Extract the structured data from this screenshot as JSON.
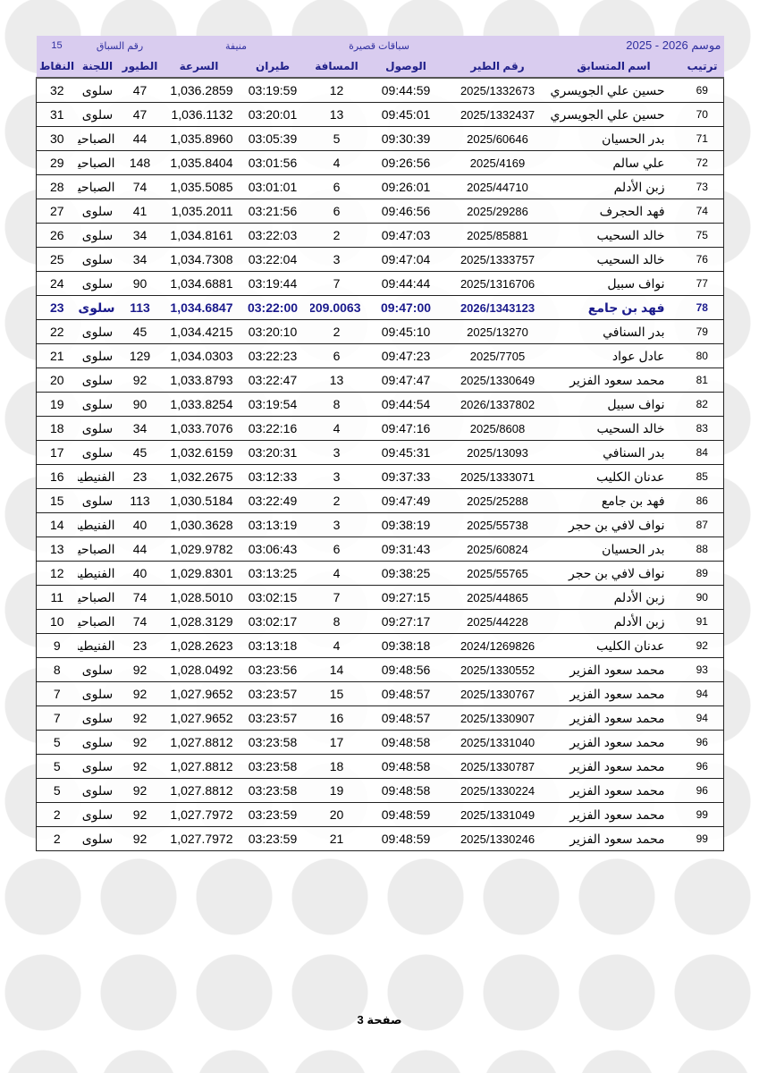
{
  "header": {
    "season": "موسم 2026 - 2025",
    "race_type": "سباقات قصيرة",
    "location": "منيفة",
    "race_number_label": "رقم السباق",
    "race_number": "15"
  },
  "table": {
    "columns": [
      "ترتيب",
      "اسم المتسابق",
      "رقم الطير",
      "الوصول",
      "المسافة",
      "طيران",
      "السرعة",
      "الطيور",
      "اللجنة",
      "النقاط"
    ],
    "rows": [
      [
        "69",
        "حسين علي الجويسري",
        "2025/1332673",
        "09:44:59",
        "12",
        "03:19:59",
        "1,036.2859",
        "47",
        "سلوى",
        "32"
      ],
      [
        "70",
        "حسين علي الجويسري",
        "2025/1332437",
        "09:45:01",
        "13",
        "03:20:01",
        "1,036.1132",
        "47",
        "سلوى",
        "31"
      ],
      [
        "71",
        "بدر الحسيان",
        "2025/60646",
        "09:30:39",
        "5",
        "03:05:39",
        "1,035.8960",
        "44",
        "الصباحية",
        "30"
      ],
      [
        "72",
        "علي سالم",
        "2025/4169",
        "09:26:56",
        "4",
        "03:01:56",
        "1,035.8404",
        "148",
        "الصباحية",
        "29"
      ],
      [
        "73",
        "زبن الأدلم",
        "2025/44710",
        "09:26:01",
        "6",
        "03:01:01",
        "1,035.5085",
        "74",
        "الصباحية",
        "28"
      ],
      [
        "74",
        "فهد الحجرف",
        "2025/29286",
        "09:46:56",
        "6",
        "03:21:56",
        "1,035.2011",
        "41",
        "سلوى",
        "27"
      ],
      [
        "75",
        "خالد السحيب",
        "2025/85881",
        "09:47:03",
        "2",
        "03:22:03",
        "1,034.8161",
        "34",
        "سلوى",
        "26"
      ],
      [
        "76",
        "خالد السحيب",
        "2025/1333757",
        "09:47:04",
        "3",
        "03:22:04",
        "1,034.7308",
        "34",
        "سلوى",
        "25"
      ],
      [
        "77",
        "نواف سبيل",
        "2025/1316706",
        "09:44:44",
        "7",
        "03:19:44",
        "1,034.6881",
        "90",
        "سلوى",
        "24"
      ],
      [
        "78",
        "فهد بن جامع",
        "2026/1343123",
        "09:47:00",
        "209.0063",
        "03:22:00",
        "1,034.6847",
        "113",
        "سلوى",
        "23"
      ],
      [
        "79",
        "بدر السنافي",
        "2025/13270",
        "09:45:10",
        "2",
        "03:20:10",
        "1,034.4215",
        "45",
        "سلوى",
        "22"
      ],
      [
        "80",
        "عادل عواد",
        "2025/7705",
        "09:47:23",
        "6",
        "03:22:23",
        "1,034.0303",
        "129",
        "سلوى",
        "21"
      ],
      [
        "81",
        "محمد سعود الفزير",
        "2025/1330649",
        "09:47:47",
        "13",
        "03:22:47",
        "1,033.8793",
        "92",
        "سلوى",
        "20"
      ],
      [
        "82",
        "نواف سبيل",
        "2026/1337802",
        "09:44:54",
        "8",
        "03:19:54",
        "1,033.8254",
        "90",
        "سلوى",
        "19"
      ],
      [
        "83",
        "خالد السحيب",
        "2025/8608",
        "09:47:16",
        "4",
        "03:22:16",
        "1,033.7076",
        "34",
        "سلوى",
        "18"
      ],
      [
        "84",
        "بدر السنافي",
        "2025/13093",
        "09:45:31",
        "3",
        "03:20:31",
        "1,032.6159",
        "45",
        "سلوى",
        "17"
      ],
      [
        "85",
        "عدنان الكليب",
        "2025/1333071",
        "09:37:33",
        "3",
        "03:12:33",
        "1,032.2675",
        "23",
        "الفنيطيس",
        "16"
      ],
      [
        "86",
        "فهد بن جامع",
        "2025/25288",
        "09:47:49",
        "2",
        "03:22:49",
        "1,030.5184",
        "113",
        "سلوى",
        "15"
      ],
      [
        "87",
        "نواف لافي بن حجر",
        "2025/55738",
        "09:38:19",
        "3",
        "03:13:19",
        "1,030.3628",
        "40",
        "الفنيطيس",
        "14"
      ],
      [
        "88",
        "بدر الحسيان",
        "2025/60824",
        "09:31:43",
        "6",
        "03:06:43",
        "1,029.9782",
        "44",
        "الصباحية",
        "13"
      ],
      [
        "89",
        "نواف لافي بن حجر",
        "2025/55765",
        "09:38:25",
        "4",
        "03:13:25",
        "1,029.8301",
        "40",
        "الفنيطيس",
        "12"
      ],
      [
        "90",
        "زبن الأدلم",
        "2025/44865",
        "09:27:15",
        "7",
        "03:02:15",
        "1,028.5010",
        "74",
        "الصباحية",
        "11"
      ],
      [
        "91",
        "زبن الأدلم",
        "2025/44228",
        "09:27:17",
        "8",
        "03:02:17",
        "1,028.3129",
        "74",
        "الصباحية",
        "10"
      ],
      [
        "92",
        "عدنان الكليب",
        "2024/1269826",
        "09:38:18",
        "4",
        "03:13:18",
        "1,028.2623",
        "23",
        "الفنيطيس",
        "9"
      ],
      [
        "93",
        "محمد سعود الفزير",
        "2025/1330552",
        "09:48:56",
        "14",
        "03:23:56",
        "1,028.0492",
        "92",
        "سلوى",
        "8"
      ],
      [
        "94",
        "محمد سعود الفزير",
        "2025/1330767",
        "09:48:57",
        "15",
        "03:23:57",
        "1,027.9652",
        "92",
        "سلوى",
        "7"
      ],
      [
        "94",
        "محمد سعود الفزير",
        "2025/1330907",
        "09:48:57",
        "16",
        "03:23:57",
        "1,027.9652",
        "92",
        "سلوى",
        "7"
      ],
      [
        "96",
        "محمد سعود الفزير",
        "2025/1331040",
        "09:48:58",
        "17",
        "03:23:58",
        "1,027.8812",
        "92",
        "سلوى",
        "5"
      ],
      [
        "96",
        "محمد سعود الفزير",
        "2025/1330787",
        "09:48:58",
        "18",
        "03:23:58",
        "1,027.8812",
        "92",
        "سلوى",
        "5"
      ],
      [
        "96",
        "محمد سعود الفزير",
        "2025/1330224",
        "09:48:58",
        "19",
        "03:23:58",
        "1,027.8812",
        "92",
        "سلوى",
        "5"
      ],
      [
        "99",
        "محمد سعود الفزير",
        "2025/1331049",
        "09:48:59",
        "20",
        "03:23:59",
        "1,027.7972",
        "92",
        "سلوى",
        "2"
      ],
      [
        "99",
        "محمد سعود الفزير",
        "2025/1330246",
        "09:48:59",
        "21",
        "03:23:59",
        "1,027.7972",
        "92",
        "سلوى",
        "2"
      ]
    ]
  },
  "footer": {
    "page": "صفحة 3"
  }
}
